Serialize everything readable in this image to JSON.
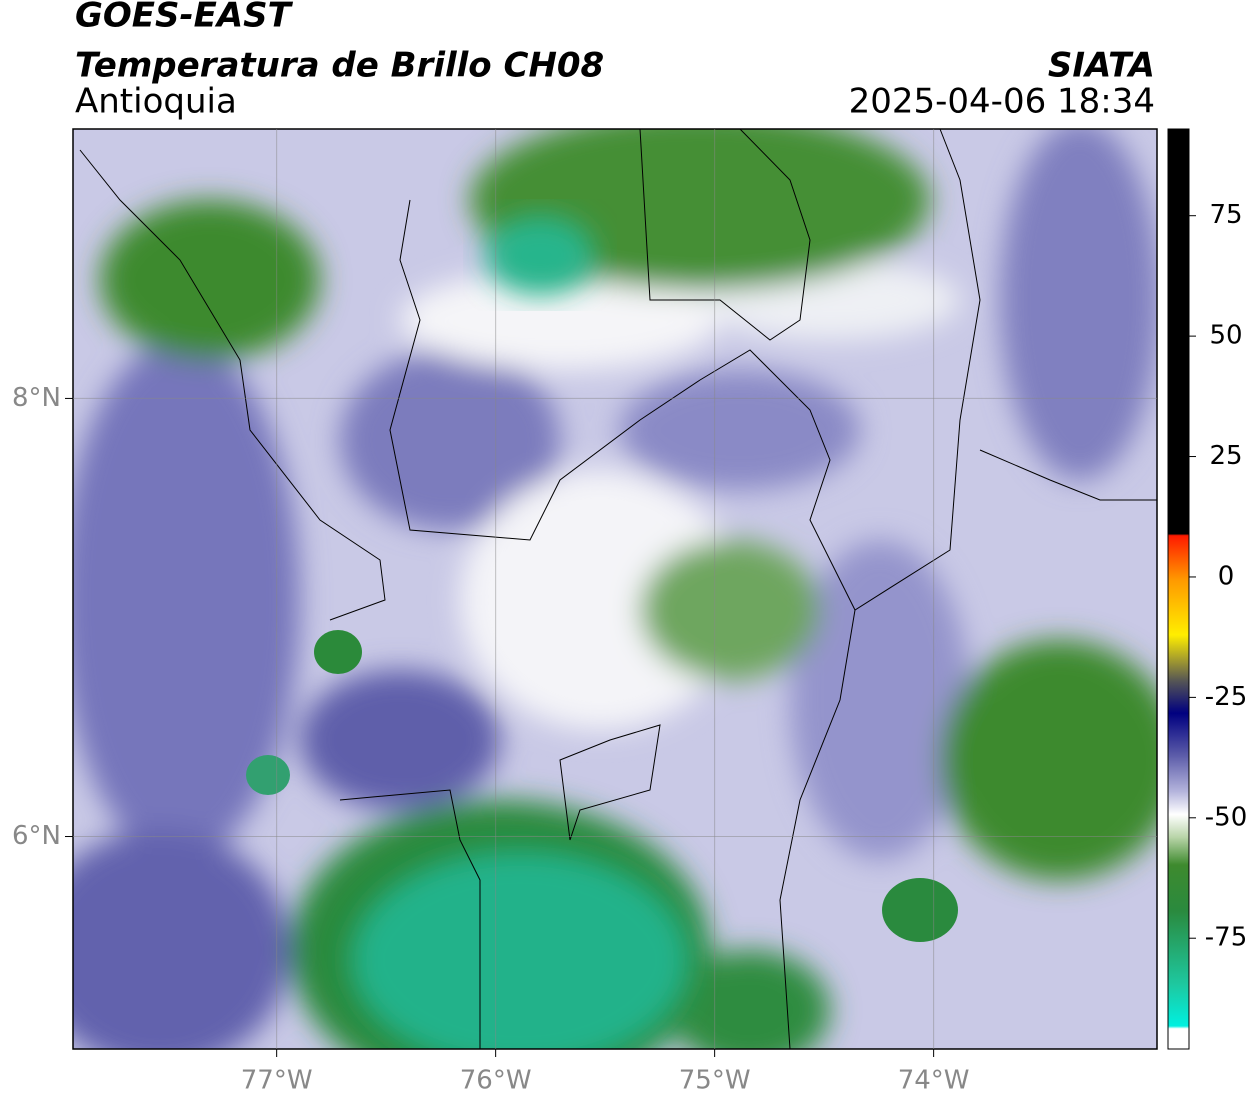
{
  "header": {
    "title": "GOES-EAST",
    "subtitle": "Temperatura de Brillo CH08",
    "region": "Antioquia",
    "source": "SIATA",
    "datetime": "2025-04-06 18:34"
  },
  "map": {
    "type": "map",
    "xlim": [
      -77.93,
      -72.98
    ],
    "ylim": [
      5.03,
      9.23
    ],
    "xticks": [
      {
        "value": -77,
        "label": "77°W"
      },
      {
        "value": -76,
        "label": "76°W"
      },
      {
        "value": -75,
        "label": "75°W"
      },
      {
        "value": -74,
        "label": "74°W"
      }
    ],
    "yticks": [
      {
        "value": 6,
        "label": "6°N"
      },
      {
        "value": 8,
        "label": "8°N"
      }
    ],
    "grid": true
  },
  "colorbar": {
    "lim": [
      -98,
      93
    ],
    "ticks": [
      -75,
      -50,
      -25,
      0,
      25,
      50,
      75
    ]
  }
}
